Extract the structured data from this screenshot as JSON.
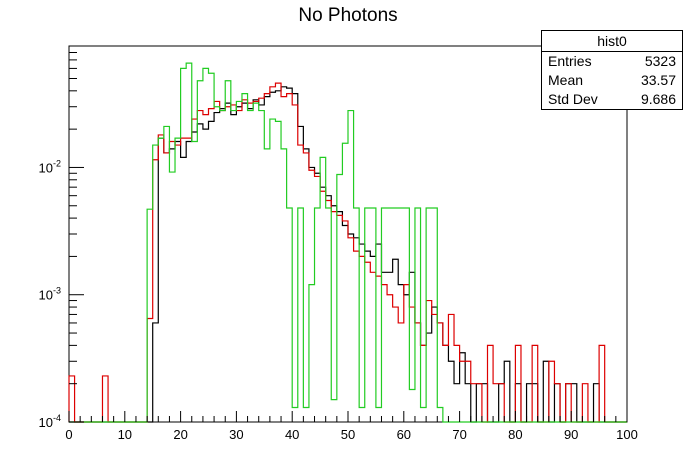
{
  "chart_data": {
    "type": "histogram",
    "title": "No Photons",
    "xlabel": "",
    "ylabel": "",
    "xlim": [
      0,
      100
    ],
    "ylim": [
      0.0001,
      0.09
    ],
    "ylog": true,
    "bins": 100,
    "x_ticks": [
      "0",
      "10",
      "20",
      "30",
      "40",
      "50",
      "60",
      "70",
      "80",
      "90",
      "100"
    ],
    "y_ticks": [
      {
        "value": 0.01,
        "base": "10",
        "exp": "-2"
      },
      {
        "value": 0.001,
        "base": "10",
        "exp": "-3"
      },
      {
        "value": 0.0001,
        "base": "10",
        "exp": "-4"
      }
    ],
    "stats": {
      "name": "hist0",
      "rows": [
        {
          "label": "Entries",
          "value": "5323"
        },
        {
          "label": "Mean",
          "value": "33.57"
        },
        {
          "label": "Std Dev",
          "value": "9.686"
        }
      ]
    },
    "series": [
      {
        "color": "#000000",
        "values": [
          0.0001,
          0.0001,
          0,
          0,
          0,
          0,
          0,
          0,
          0,
          0,
          0,
          0,
          0,
          0,
          0,
          0.0006,
          0.017,
          0.013,
          0.014,
          0.016,
          0.012,
          0.016,
          0.019,
          0.022,
          0.02,
          0.023,
          0.027,
          0.029,
          0.032,
          0.026,
          0.03,
          0.032,
          0.029,
          0.034,
          0.031,
          0.036,
          0.039,
          0.04,
          0.043,
          0.042,
          0.038,
          0.021,
          0.014,
          0.01,
          0.009,
          0.007,
          0.006,
          0.005,
          0.0045,
          0.0035,
          0.003,
          0.0028,
          0.0025,
          0.0022,
          0.002,
          0.0025,
          0.0015,
          0.0015,
          0.0019,
          0.0012,
          0.001,
          0.0015,
          0.0006,
          0.0004,
          0.0005,
          0.0008,
          0.0006,
          0.0004,
          0.0003,
          0.0002,
          0.00035,
          0.0002,
          0.0001,
          0.0002,
          0.0002,
          0.0001,
          0.0001,
          0.0002,
          0.0003,
          0.0001,
          0.0002,
          0.0001,
          0.0002,
          0.0002,
          0.0001,
          0.0003,
          0.0001,
          0.0002,
          0.0001,
          0.0002,
          0.0002,
          0.0001,
          0.0001,
          0.0001,
          0.0002,
          0,
          0,
          0,
          0,
          0
        ]
      },
      {
        "color": "#dd0000",
        "values": [
          0.00023,
          0,
          0,
          0,
          0,
          0,
          0.00023,
          0,
          0,
          0,
          0,
          0,
          0,
          0,
          0.00065,
          0.0115,
          0.018,
          0.013,
          0.016,
          0.015,
          0.017,
          0.017,
          0.024,
          0.028,
          0.026,
          0.029,
          0.033,
          0.028,
          0.03,
          0.031,
          0.028,
          0.034,
          0.032,
          0.033,
          0.035,
          0.038,
          0.043,
          0.046,
          0.036,
          0.038,
          0.031,
          0.015,
          0.013,
          0.0095,
          0.0085,
          0.0065,
          0.0055,
          0.0045,
          0.0042,
          0.0038,
          0.0028,
          0.0022,
          0.002,
          0.0018,
          0.0015,
          0.0014,
          0.0012,
          0.001,
          0.0008,
          0.0006,
          0.0012,
          0.0008,
          0.0006,
          0.0004,
          0.0009,
          0.0007,
          0.0006,
          0.0004,
          0.0007,
          0.0004,
          0.0003,
          0.0003,
          0.0002,
          0.0002,
          0.0001,
          0.0004,
          0.0002,
          0.0002,
          0.0001,
          0.0001,
          0.0004,
          0.0001,
          0.0001,
          0.0004,
          0.0001,
          0.0001,
          0.0003,
          0.0002,
          0.0001,
          0.0002,
          0.0001,
          0.0001,
          0.0002,
          0.0001,
          0.0001,
          0.0004,
          0,
          0,
          0,
          0
        ]
      },
      {
        "color": "#22cc22",
        "values": [
          0,
          0,
          0,
          0,
          0,
          0,
          0,
          0,
          0,
          0,
          0,
          0,
          0,
          0,
          0.0047,
          0.015,
          0.017,
          0.021,
          0.0092,
          0.017,
          0.06,
          0.066,
          0.016,
          0.048,
          0.06,
          0.055,
          0.03,
          0.028,
          0.048,
          0.028,
          0.033,
          0.038,
          0.028,
          0.032,
          0.028,
          0.014,
          0.024,
          0.023,
          0.014,
          0.0048,
          0.00013,
          0.0048,
          0.00013,
          0.0012,
          0.0048,
          0.012,
          0.0048,
          0.00015,
          0.0088,
          0.0155,
          0.028,
          0.0048,
          0.00013,
          0.0048,
          0.0048,
          0.00013,
          0.0048,
          0.0048,
          0.0048,
          0.0048,
          0.0048,
          0.00018,
          0.0048,
          0.00013,
          0.0048,
          0.0048,
          0.00013,
          0,
          0,
          0,
          0,
          0,
          0,
          0,
          0,
          0,
          0,
          0,
          0,
          0,
          0,
          0,
          0,
          0,
          0,
          0,
          0,
          0,
          0,
          0,
          0,
          0,
          0,
          0,
          0,
          0,
          0,
          0,
          0,
          0
        ]
      }
    ]
  }
}
